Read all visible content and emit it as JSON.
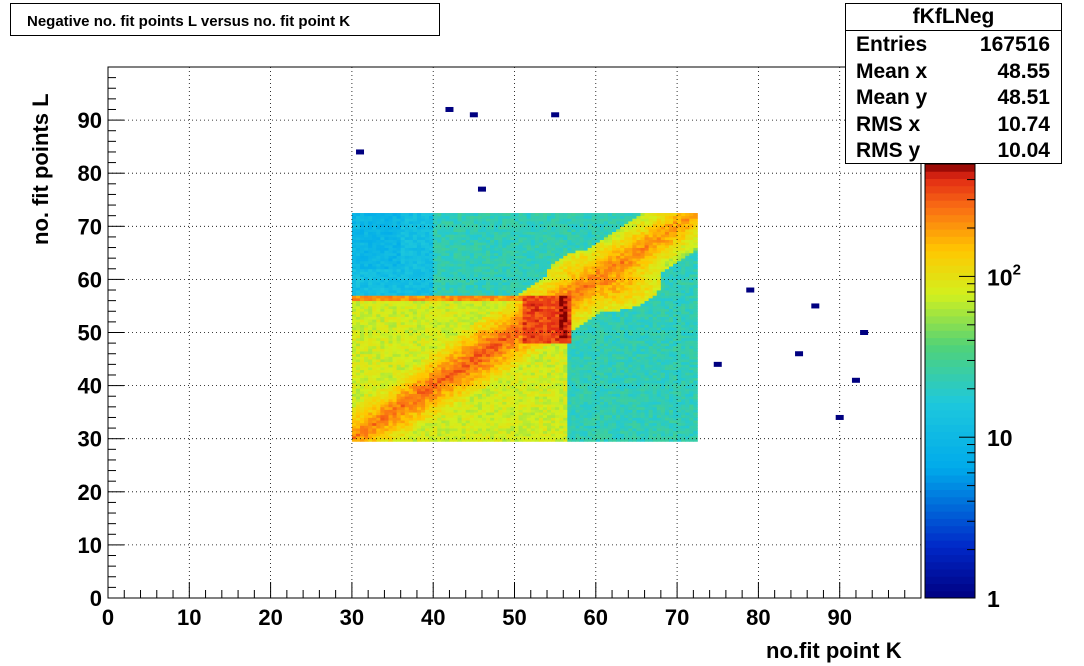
{
  "chart_data": {
    "type": "heatmap",
    "title": "Negative no. fit points L versus no. fit point K",
    "xlabel": "no.fit point K",
    "ylabel": "no. fit points  L",
    "xlim": [
      0,
      100
    ],
    "ylim": [
      0,
      100
    ],
    "x_ticks": [
      "0",
      "10",
      "20",
      "30",
      "40",
      "50",
      "60",
      "70",
      "80",
      "90"
    ],
    "y_ticks": [
      "0",
      "10",
      "20",
      "30",
      "40",
      "50",
      "60",
      "70",
      "80",
      "90"
    ],
    "grid": true,
    "z_scale": "log",
    "z_range": [
      1,
      500
    ],
    "colorbar_labels": [
      {
        "value": 1,
        "label": "1"
      },
      {
        "value": 10,
        "label": "10"
      },
      {
        "value": 100,
        "label": "10",
        "exp": "2"
      }
    ],
    "main_region": {
      "x": [
        30,
        72.5
      ],
      "y": [
        29.5,
        72.5
      ]
    },
    "outliers": [
      {
        "x": 31,
        "y": 84
      },
      {
        "x": 42,
        "y": 92
      },
      {
        "x": 45,
        "y": 91
      },
      {
        "x": 55,
        "y": 91
      },
      {
        "x": 46,
        "y": 77
      },
      {
        "x": 79,
        "y": 58
      },
      {
        "x": 87,
        "y": 55
      },
      {
        "x": 93,
        "y": 50
      },
      {
        "x": 75,
        "y": 44
      },
      {
        "x": 85,
        "y": 46
      },
      {
        "x": 92,
        "y": 41
      },
      {
        "x": 90,
        "y": 34
      }
    ]
  },
  "stats": {
    "name": "fKfLNeg",
    "rows": [
      {
        "key": "Entries",
        "value": "167516"
      },
      {
        "key": "Mean x",
        "value": "48.55"
      },
      {
        "key": "Mean y",
        "value": "48.51"
      },
      {
        "key": "RMS x",
        "value": "10.74"
      },
      {
        "key": "RMS y",
        "value": "10.04"
      }
    ]
  }
}
